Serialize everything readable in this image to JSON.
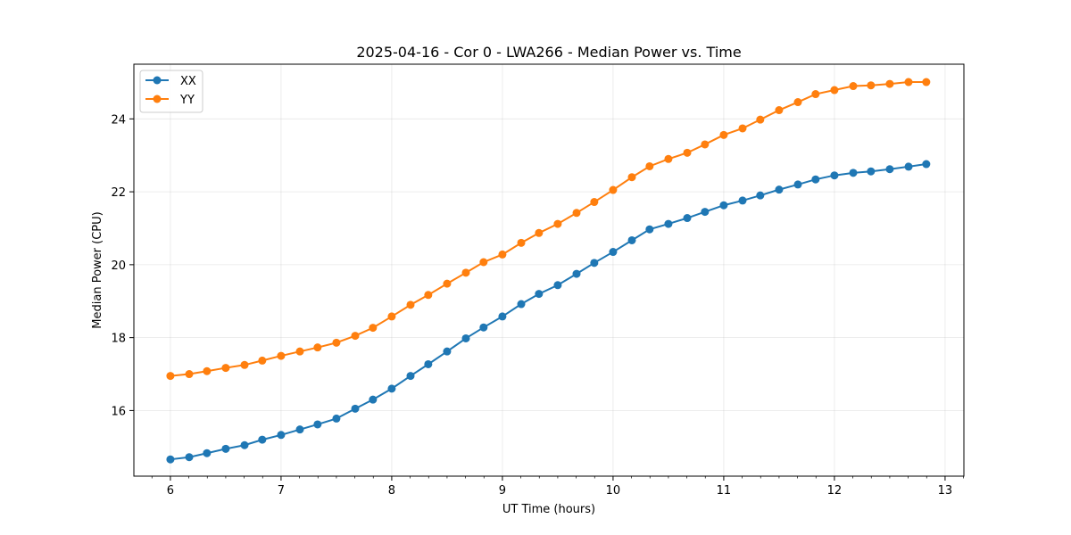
{
  "chart_data": {
    "type": "line",
    "title": "2025-04-16 - Cor 0 - LWA266 - Median Power vs. Time",
    "xlabel": "UT Time (hours)",
    "ylabel": "Median Power (CPU)",
    "xlim": [
      5.67,
      13.17
    ],
    "ylim": [
      14.2,
      25.5
    ],
    "xticks": [
      6,
      7,
      8,
      9,
      10,
      11,
      12,
      13
    ],
    "yticks": [
      16,
      18,
      20,
      22,
      24
    ],
    "grid": true,
    "legend": "top-left",
    "x": [
      6.0,
      6.17,
      6.33,
      6.5,
      6.67,
      6.83,
      7.0,
      7.17,
      7.33,
      7.5,
      7.67,
      7.83,
      8.0,
      8.17,
      8.33,
      8.5,
      8.67,
      8.83,
      9.0,
      9.17,
      9.33,
      9.5,
      9.67,
      9.83,
      10.0,
      10.17,
      10.33,
      10.5,
      10.67,
      10.83,
      11.0,
      11.17,
      11.33,
      11.5,
      11.67,
      11.83,
      12.0,
      12.17,
      12.33,
      12.5,
      12.67,
      12.83
    ],
    "series": [
      {
        "name": "XX",
        "color": "#1f77b4",
        "values": [
          14.66,
          14.72,
          14.83,
          14.95,
          15.05,
          15.2,
          15.33,
          15.48,
          15.62,
          15.78,
          16.05,
          16.3,
          16.6,
          16.95,
          17.27,
          17.62,
          17.98,
          18.28,
          18.58,
          18.92,
          19.2,
          19.44,
          19.75,
          20.05,
          20.35,
          20.67,
          20.97,
          21.12,
          21.28,
          21.45,
          21.63,
          21.76,
          21.9,
          22.06,
          22.2,
          22.34,
          22.45,
          22.52,
          22.56,
          22.62,
          22.69,
          22.76
        ]
      },
      {
        "name": "YY",
        "color": "#ff7f0e",
        "values": [
          16.95,
          17.0,
          17.08,
          17.17,
          17.25,
          17.37,
          17.5,
          17.62,
          17.73,
          17.86,
          18.05,
          18.27,
          18.58,
          18.9,
          19.17,
          19.48,
          19.78,
          20.07,
          20.28,
          20.6,
          20.87,
          21.12,
          21.42,
          21.72,
          22.05,
          22.4,
          22.7,
          22.9,
          23.07,
          23.3,
          23.56,
          23.74,
          23.98,
          24.24,
          24.46,
          24.68,
          24.79,
          24.9,
          24.92,
          24.96,
          25.01,
          25.01
        ]
      }
    ]
  }
}
